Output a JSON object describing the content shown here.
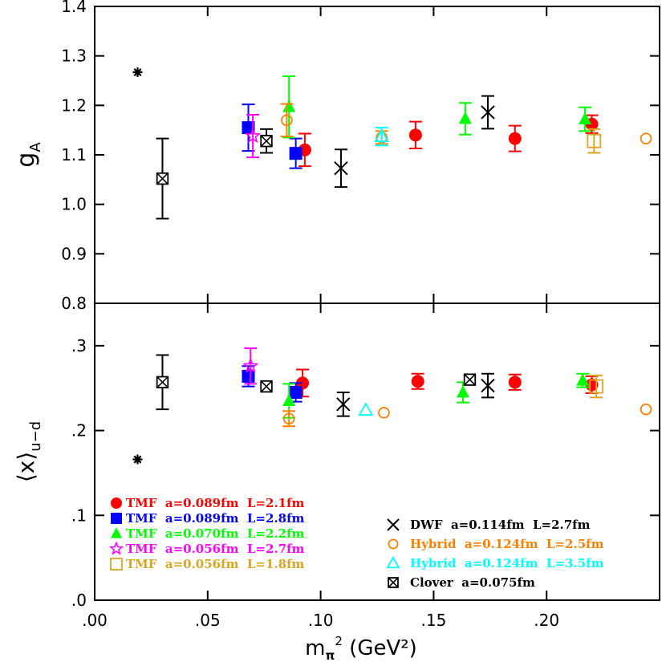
{
  "chart_data": [
    {
      "type": "scatter",
      "panel": "top",
      "ylabel_main": "g",
      "ylabel_sub": "A",
      "ylim": [
        0.8,
        1.4
      ],
      "yticks": [
        "0.8",
        "0.9",
        "1.0",
        "1.1",
        "1.2",
        "1.3",
        "1.4"
      ],
      "experiment": {
        "x": 0.019,
        "y": 1.267,
        "marker": "star"
      },
      "series": [
        {
          "name": "TMF  a=0.089fm  L=2.1fm",
          "color": "#ff0000",
          "marker": "filled-circle",
          "points": [
            {
              "x": 0.093,
              "y": 1.11,
              "err": 0.033
            },
            {
              "x": 0.142,
              "y": 1.14,
              "err": 0.027
            },
            {
              "x": 0.186,
              "y": 1.133,
              "err": 0.026
            },
            {
              "x": 0.22,
              "y": 1.162,
              "err": 0.018
            }
          ]
        },
        {
          "name": "TMF  a=0.089fm  L=2.8fm",
          "color": "#0000ff",
          "marker": "filled-square",
          "points": [
            {
              "x": 0.068,
              "y": 1.155,
              "err": 0.047
            },
            {
              "x": 0.089,
              "y": 1.103,
              "err": 0.03
            }
          ]
        },
        {
          "name": "TMF  a=0.070fm  L=2.2fm",
          "color": "#00ff00",
          "marker": "filled-triangle",
          "points": [
            {
              "x": 0.086,
              "y": 1.197,
              "err": 0.062
            },
            {
              "x": 0.164,
              "y": 1.173,
              "err": 0.032
            },
            {
              "x": 0.217,
              "y": 1.172,
              "err": 0.024
            }
          ]
        },
        {
          "name": "TMF  a=0.056fm  L=2.7fm",
          "color": "#ff00ff",
          "marker": "open-star",
          "points": [
            {
              "x": 0.07,
              "y": 1.138,
              "err": 0.043
            }
          ]
        },
        {
          "name": "TMF  a=0.056fm  L=1.8fm",
          "color": "#daa520",
          "marker": "open-square",
          "points": [
            {
              "x": 0.221,
              "y": 1.128,
              "err": 0.024
            }
          ]
        },
        {
          "name": "DWF  a=0.114fm  L=2.7fm",
          "color": "#000000",
          "marker": "cross",
          "points": [
            {
              "x": 0.109,
              "y": 1.073,
              "err": 0.038
            },
            {
              "x": 0.174,
              "y": 1.186,
              "err": 0.033
            }
          ]
        },
        {
          "name": "Hybrid  a=0.124fm  L=2.5fm",
          "color": "#ff8000",
          "marker": "open-circle",
          "points": [
            {
              "x": 0.085,
              "y": 1.17,
              "err": 0.033
            },
            {
              "x": 0.127,
              "y": 1.135,
              "err": 0.013
            },
            {
              "x": 0.244,
              "y": 1.133,
              "err": 0
            }
          ]
        },
        {
          "name": "Hybrid  a=0.124fm  L=3.5fm",
          "color": "#00ffff",
          "marker": "open-triangle",
          "points": [
            {
              "x": 0.127,
              "y": 1.137,
              "err": 0.018
            }
          ]
        },
        {
          "name": "Clover  a=0.075fm",
          "color": "#000000",
          "marker": "boxed-cross",
          "points": [
            {
              "x": 0.03,
              "y": 1.052,
              "err": 0.081
            },
            {
              "x": 0.076,
              "y": 1.128,
              "err": 0.024
            }
          ]
        }
      ]
    },
    {
      "type": "scatter",
      "panel": "bottom",
      "ylabel": "⟨x⟩",
      "ylabel_sub": "u−d",
      "ylim": [
        0.0,
        0.35
      ],
      "yticks": [
        ".0",
        ".1",
        ".2",
        ".3"
      ],
      "xlabel": "m",
      "xlabel_sub": "π",
      "xlabel_sup": "2",
      "xlabel_units": "(GeV²)",
      "xlim": [
        0.0,
        0.25
      ],
      "xticks": [
        ".00",
        ".05",
        ".10",
        ".15",
        ".20"
      ],
      "experiment": {
        "x": 0.019,
        "y": 0.166,
        "marker": "star"
      },
      "series": [
        {
          "name": "TMF  a=0.089fm  L=2.1fm",
          "color": "#ff0000",
          "marker": "filled-circle",
          "points": [
            {
              "x": 0.092,
              "y": 0.256,
              "err": 0.016
            },
            {
              "x": 0.143,
              "y": 0.258,
              "err": 0.009
            },
            {
              "x": 0.186,
              "y": 0.257,
              "err": 0.009
            },
            {
              "x": 0.22,
              "y": 0.254,
              "err": 0.01
            }
          ]
        },
        {
          "name": "TMF  a=0.089fm  L=2.8fm",
          "color": "#0000ff",
          "marker": "filled-square",
          "points": [
            {
              "x": 0.068,
              "y": 0.264,
              "err": 0.012
            },
            {
              "x": 0.089,
              "y": 0.245,
              "err": 0.011
            }
          ]
        },
        {
          "name": "TMF  a=0.070fm  L=2.2fm",
          "color": "#00ff00",
          "marker": "filled-triangle",
          "points": [
            {
              "x": 0.086,
              "y": 0.235,
              "err": 0.02
            },
            {
              "x": 0.163,
              "y": 0.245,
              "err": 0.012
            },
            {
              "x": 0.216,
              "y": 0.259,
              "err": 0.008
            }
          ]
        },
        {
          "name": "TMF  a=0.056fm  L=2.7fm",
          "color": "#ff00ff",
          "marker": "open-star",
          "points": [
            {
              "x": 0.069,
              "y": 0.276,
              "err": 0.021
            }
          ]
        },
        {
          "name": "TMF  a=0.056fm  L=1.8fm",
          "color": "#daa520",
          "marker": "open-square",
          "points": [
            {
              "x": 0.222,
              "y": 0.252,
              "err": 0.013
            }
          ]
        },
        {
          "name": "DWF  a=0.114fm  L=2.7fm",
          "color": "#000000",
          "marker": "cross",
          "points": [
            {
              "x": 0.11,
              "y": 0.231,
              "err": 0.014
            },
            {
              "x": 0.174,
              "y": 0.253,
              "err": 0.014
            }
          ]
        },
        {
          "name": "Hybrid  a=0.124fm  L=2.5fm",
          "color": "#ff8000",
          "marker": "open-circle",
          "points": [
            {
              "x": 0.086,
              "y": 0.214,
              "err": 0.009
            },
            {
              "x": 0.128,
              "y": 0.221,
              "err": 0
            },
            {
              "x": 0.244,
              "y": 0.225,
              "err": 0
            }
          ]
        },
        {
          "name": "Hybrid  a=0.124fm  L=3.5fm",
          "color": "#00ffff",
          "marker": "open-triangle",
          "points": [
            {
              "x": 0.12,
              "y": 0.224,
              "err": 0
            }
          ]
        },
        {
          "name": "Clover  a=0.075fm",
          "color": "#000000",
          "marker": "boxed-cross",
          "points": [
            {
              "x": 0.03,
              "y": 0.257,
              "err": 0.032
            },
            {
              "x": 0.076,
              "y": 0.252,
              "err": 0
            },
            {
              "x": 0.166,
              "y": 0.26,
              "err": 0
            }
          ]
        }
      ]
    }
  ],
  "legend": [
    {
      "label": "TMF  a=0.089fm  L=2.1fm",
      "color": "#ff0000",
      "marker": "filled-circle",
      "column": "left"
    },
    {
      "label": "TMF  a=0.089fm  L=2.8fm",
      "color": "#0000ff",
      "marker": "filled-square",
      "column": "left"
    },
    {
      "label": "TMF  a=0.070fm  L=2.2fm",
      "color": "#00ff00",
      "marker": "filled-triangle",
      "column": "left"
    },
    {
      "label": "TMF  a=0.056fm  L=2.7fm",
      "color": "#ff00ff",
      "marker": "open-star",
      "column": "left"
    },
    {
      "label": "TMF  a=0.056fm  L=1.8fm",
      "color": "#daa520",
      "marker": "open-square",
      "column": "left"
    },
    {
      "label": "DWF  a=0.114fm  L=2.7fm",
      "color": "#000000",
      "marker": "cross",
      "column": "right"
    },
    {
      "label": "Hybrid  a=0.124fm  L=2.5fm",
      "color": "#ff8000",
      "marker": "open-circle",
      "column": "right"
    },
    {
      "label": "Hybrid  a=0.124fm  L=3.5fm",
      "color": "#00ffff",
      "marker": "open-triangle",
      "column": "right"
    },
    {
      "label": "Clover  a=0.075fm",
      "color": "#000000",
      "marker": "boxed-cross",
      "column": "right"
    }
  ]
}
